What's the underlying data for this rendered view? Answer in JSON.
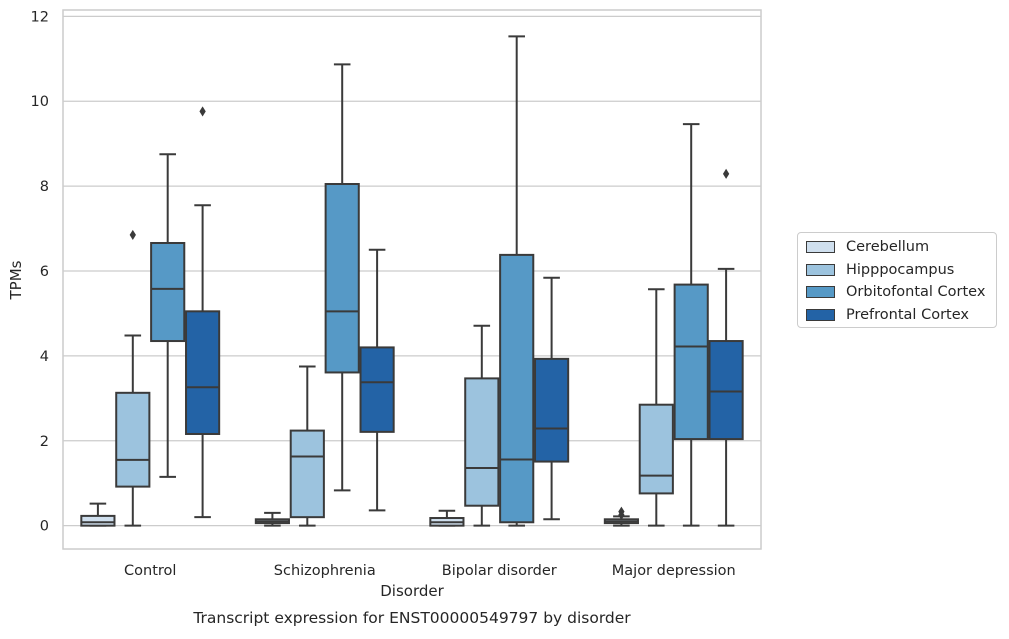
{
  "chart_data": {
    "type": "box",
    "title": "Transcript expression for ENST00000549797 by disorder",
    "xlabel": "Disorder",
    "ylabel": "TPMs",
    "ylim": [
      -0.55,
      12.15
    ],
    "yticks": [
      0,
      2,
      4,
      6,
      8,
      10,
      12
    ],
    "grid": "horizontal",
    "legend_position": "right",
    "categories": [
      "Control",
      "Schizophrenia",
      "Bipolar disorder",
      "Major depression"
    ],
    "series": [
      {
        "name": "Cerebellum",
        "color": "#cfdfee",
        "boxes": [
          {
            "whisker_low": 0.0,
            "q1": 0.0,
            "median": 0.08,
            "q3": 0.23,
            "whisker_high": 0.52,
            "outliers": []
          },
          {
            "whisker_low": 0.0,
            "q1": 0.06,
            "median": 0.1,
            "q3": 0.15,
            "whisker_high": 0.3,
            "outliers": []
          },
          {
            "whisker_low": 0.0,
            "q1": 0.0,
            "median": 0.08,
            "q3": 0.18,
            "whisker_high": 0.35,
            "outliers": []
          },
          {
            "whisker_low": 0.0,
            "q1": 0.06,
            "median": 0.1,
            "q3": 0.15,
            "whisker_high": 0.22,
            "outliers": [
              0.25,
              0.33
            ]
          }
        ]
      },
      {
        "name": "Hipppocampus",
        "color": "#9cc3de",
        "boxes": [
          {
            "whisker_low": 0.0,
            "q1": 0.92,
            "median": 1.55,
            "q3": 3.13,
            "whisker_high": 4.48,
            "outliers": [
              6.85
            ]
          },
          {
            "whisker_low": 0.0,
            "q1": 0.2,
            "median": 1.63,
            "q3": 2.24,
            "whisker_high": 3.75,
            "outliers": []
          },
          {
            "whisker_low": 0.0,
            "q1": 0.47,
            "median": 1.36,
            "q3": 3.47,
            "whisker_high": 4.71,
            "outliers": []
          },
          {
            "whisker_low": 0.0,
            "q1": 0.76,
            "median": 1.18,
            "q3": 2.85,
            "whisker_high": 5.57,
            "outliers": []
          }
        ]
      },
      {
        "name": "Orbitofontal Cortex",
        "color": "#5699c6",
        "boxes": [
          {
            "whisker_low": 1.15,
            "q1": 4.35,
            "median": 5.58,
            "q3": 6.66,
            "whisker_high": 8.75,
            "outliers": []
          },
          {
            "whisker_low": 0.83,
            "q1": 3.61,
            "median": 5.05,
            "q3": 8.05,
            "whisker_high": 10.87,
            "outliers": []
          },
          {
            "whisker_low": 0.0,
            "q1": 0.08,
            "median": 1.56,
            "q3": 6.38,
            "whisker_high": 11.53,
            "outliers": []
          },
          {
            "whisker_low": 0.0,
            "q1": 2.04,
            "median": 4.22,
            "q3": 5.68,
            "whisker_high": 9.46,
            "outliers": []
          }
        ]
      },
      {
        "name": "Prefrontal Cortex",
        "color": "#2363a6",
        "boxes": [
          {
            "whisker_low": 0.2,
            "q1": 2.16,
            "median": 3.26,
            "q3": 5.05,
            "whisker_high": 7.55,
            "outliers": [
              9.76
            ]
          },
          {
            "whisker_low": 0.36,
            "q1": 2.21,
            "median": 3.38,
            "q3": 4.2,
            "whisker_high": 6.5,
            "outliers": []
          },
          {
            "whisker_low": 0.15,
            "q1": 1.51,
            "median": 2.29,
            "q3": 3.93,
            "whisker_high": 5.84,
            "outliers": []
          },
          {
            "whisker_low": 0.0,
            "q1": 2.04,
            "median": 3.16,
            "q3": 4.35,
            "whisker_high": 6.05,
            "outliers": [
              8.29
            ]
          }
        ]
      }
    ]
  }
}
